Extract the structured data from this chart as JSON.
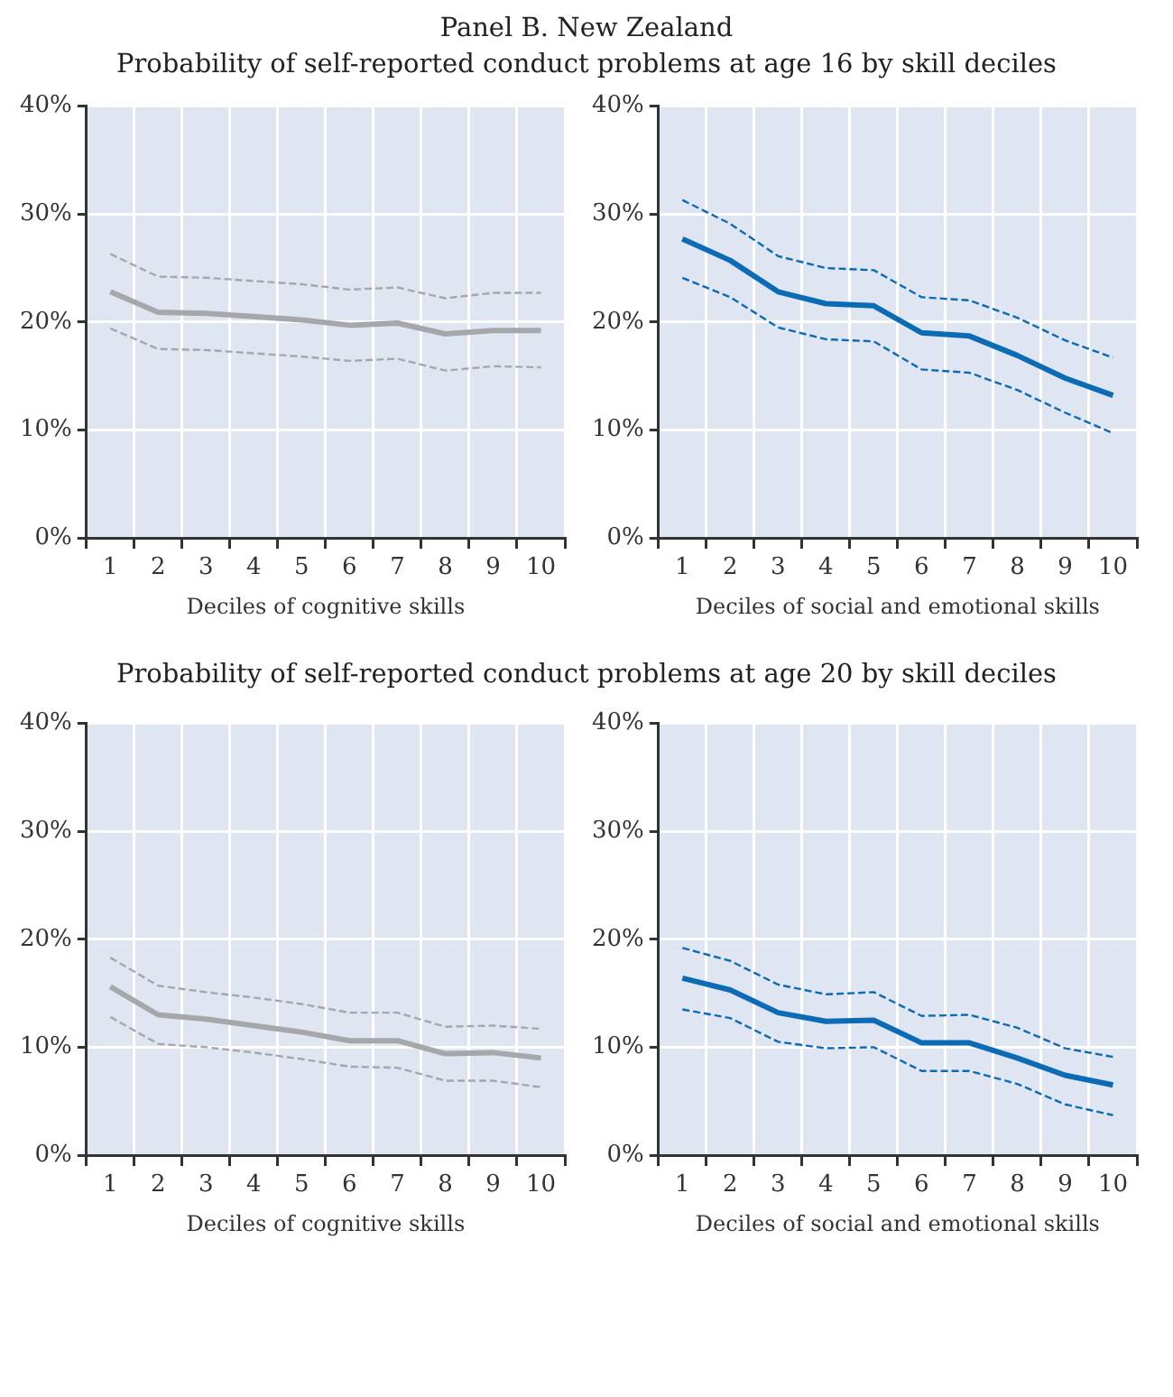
{
  "chart_data": [
    {
      "type": "line",
      "title": "Panel B. New Zealand",
      "subtitle": "Probability of self-reported conduct problems at age 16 by skill deciles",
      "xlabel": "Deciles of cognitive skills",
      "categories": [
        "1",
        "2",
        "3",
        "4",
        "5",
        "6",
        "7",
        "8",
        "9",
        "10"
      ],
      "ylim": [
        0,
        40
      ],
      "yticks": [
        {
          "value": 0,
          "label": "0%"
        },
        {
          "value": 10,
          "label": "10%"
        },
        {
          "value": 20,
          "label": "20%"
        },
        {
          "value": 30,
          "label": "30%"
        },
        {
          "value": 40,
          "label": "40%"
        }
      ],
      "grid": true,
      "marker": "none",
      "series": [
        {
          "color": "#a5a7aa",
          "line_style": "solid",
          "values": [
            22.8,
            20.9,
            20.8,
            20.5,
            20.2,
            19.7,
            19.9,
            18.9,
            19.2,
            19.2
          ]
        },
        {
          "color": "#a5a7aa",
          "line_style": "dashed",
          "values": [
            26.3,
            24.2,
            24.1,
            23.8,
            23.5,
            23.0,
            23.2,
            22.2,
            22.7,
            22.7
          ]
        },
        {
          "color": "#a5a7aa",
          "line_style": "dashed",
          "values": [
            19.4,
            17.5,
            17.4,
            17.1,
            16.8,
            16.4,
            16.6,
            15.5,
            15.9,
            15.8
          ]
        }
      ]
    },
    {
      "type": "line",
      "xlabel": "Deciles of social and emotional skills",
      "categories": [
        "1",
        "2",
        "3",
        "4",
        "5",
        "6",
        "7",
        "8",
        "9",
        "10"
      ],
      "ylim": [
        0,
        40
      ],
      "yticks": [
        {
          "value": 0,
          "label": "0%"
        },
        {
          "value": 10,
          "label": "10%"
        },
        {
          "value": 20,
          "label": "20%"
        },
        {
          "value": 30,
          "label": "30%"
        },
        {
          "value": 40,
          "label": "40%"
        }
      ],
      "grid": true,
      "marker": "none",
      "series": [
        {
          "color": "#0b6bb5",
          "line_style": "solid",
          "values": [
            27.7,
            25.7,
            22.8,
            21.7,
            21.5,
            19.0,
            18.7,
            16.9,
            14.8,
            13.2
          ]
        },
        {
          "color": "#0b6bb5",
          "line_style": "dashed",
          "values": [
            31.3,
            29.1,
            26.1,
            25.0,
            24.8,
            22.3,
            22.0,
            20.4,
            18.3,
            16.7
          ]
        },
        {
          "color": "#0b6bb5",
          "line_style": "dashed",
          "values": [
            24.1,
            22.3,
            19.5,
            18.4,
            18.2,
            15.6,
            15.3,
            13.7,
            11.6,
            9.7
          ]
        }
      ]
    },
    {
      "type": "line",
      "title": "Probability of self-reported conduct problems at age 20 by skill deciles",
      "xlabel": "Deciles of cognitive skills",
      "categories": [
        "1",
        "2",
        "3",
        "4",
        "5",
        "6",
        "7",
        "8",
        "9",
        "10"
      ],
      "ylim": [
        0,
        40
      ],
      "yticks": [
        {
          "value": 0,
          "label": "0%"
        },
        {
          "value": 10,
          "label": "10%"
        },
        {
          "value": 20,
          "label": "20%"
        },
        {
          "value": 30,
          "label": "30%"
        },
        {
          "value": 40,
          "label": "40%"
        }
      ],
      "grid": true,
      "marker": "none",
      "series": [
        {
          "color": "#a5a7aa",
          "line_style": "solid",
          "values": [
            15.6,
            13.0,
            12.6,
            12.0,
            11.4,
            10.6,
            10.6,
            9.4,
            9.5,
            9.0
          ]
        },
        {
          "color": "#a5a7aa",
          "line_style": "dashed",
          "values": [
            18.3,
            15.7,
            15.1,
            14.6,
            14.0,
            13.2,
            13.2,
            11.9,
            12.0,
            11.7
          ]
        },
        {
          "color": "#a5a7aa",
          "line_style": "dashed",
          "values": [
            12.8,
            10.3,
            10.0,
            9.5,
            8.9,
            8.2,
            8.1,
            6.9,
            6.9,
            6.3
          ]
        }
      ]
    },
    {
      "type": "line",
      "xlabel": "Deciles of social and emotional skills",
      "categories": [
        "1",
        "2",
        "3",
        "4",
        "5",
        "6",
        "7",
        "8",
        "9",
        "10"
      ],
      "ylim": [
        0,
        40
      ],
      "yticks": [
        {
          "value": 0,
          "label": "0%"
        },
        {
          "value": 10,
          "label": "10%"
        },
        {
          "value": 20,
          "label": "20%"
        },
        {
          "value": 30,
          "label": "30%"
        },
        {
          "value": 40,
          "label": "40%"
        }
      ],
      "grid": true,
      "marker": "none",
      "series": [
        {
          "color": "#0b6bb5",
          "line_style": "solid",
          "values": [
            16.4,
            15.3,
            13.2,
            12.4,
            12.5,
            10.4,
            10.4,
            9.0,
            7.4,
            6.5
          ]
        },
        {
          "color": "#0b6bb5",
          "line_style": "dashed",
          "values": [
            19.2,
            18.0,
            15.8,
            14.9,
            15.1,
            12.9,
            13.0,
            11.8,
            9.9,
            9.1
          ]
        },
        {
          "color": "#0b6bb5",
          "line_style": "dashed",
          "values": [
            13.5,
            12.7,
            10.5,
            9.9,
            10.0,
            7.8,
            7.8,
            6.6,
            4.7,
            3.7
          ]
        }
      ]
    }
  ]
}
